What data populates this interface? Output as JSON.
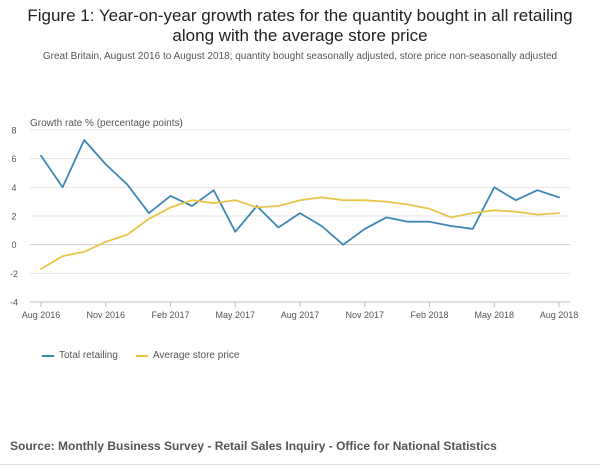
{
  "title_line1": "Figure 1: Year-on-year growth rates for the quantity bought in all retailing",
  "title_line2": "along with the average store price",
  "subtitle": "Great Britain, August 2016 to August 2018; quantity bought seasonally adjusted, store price non-seasonally adjusted",
  "source": "Source: Monthly Business Survey - Retail Sales Inquiry - Office for National Statistics",
  "chart_data": {
    "type": "line",
    "title": "Figure 1: Year-on-year growth rates for the quantity bought in all retailing along with the average store price",
    "ylabel": "Growth rate % (percentage points)",
    "xlabel": "",
    "ylim": [
      -4,
      8
    ],
    "yticks": [
      "-4",
      "-2",
      "0",
      "2",
      "4",
      "6",
      "8"
    ],
    "x": [
      "Aug 2016",
      "Sep 2016",
      "Oct 2016",
      "Nov 2016",
      "Dec 2016",
      "Jan 2017",
      "Feb 2017",
      "Mar 2017",
      "Apr 2017",
      "May 2017",
      "Jun 2017",
      "Jul 2017",
      "Aug 2017",
      "Sep 2017",
      "Oct 2017",
      "Nov 2017",
      "Dec 2017",
      "Jan 2018",
      "Feb 2018",
      "Mar 2018",
      "Apr 2018",
      "May 2018",
      "Jun 2018",
      "Jul 2018",
      "Aug 2018"
    ],
    "xtick_labels": [
      "Aug 2016",
      "Nov 2016",
      "Feb 2017",
      "May 2017",
      "Aug 2017",
      "Nov 2017",
      "Feb 2018",
      "May 2018",
      "Aug 2018"
    ],
    "grid": "horizontal",
    "legend_position": "bottom-left",
    "series": [
      {
        "name": "Total retailing",
        "color": "#3d87b5",
        "values": [
          6.2,
          4.0,
          7.3,
          5.6,
          4.2,
          2.2,
          3.4,
          2.7,
          3.8,
          0.9,
          2.7,
          1.2,
          2.2,
          1.3,
          0.0,
          1.1,
          1.9,
          1.6,
          1.6,
          1.3,
          1.1,
          4.0,
          3.1,
          3.8,
          3.3
        ]
      },
      {
        "name": "Average store price",
        "color": "#e8c54a",
        "values": [
          -1.7,
          -0.8,
          -0.5,
          0.2,
          0.7,
          1.8,
          2.6,
          3.1,
          2.9,
          3.1,
          2.6,
          2.7,
          3.1,
          3.3,
          3.1,
          3.1,
          3.0,
          2.8,
          2.5,
          1.9,
          2.2,
          2.4,
          2.3,
          2.1,
          2.2
        ]
      }
    ]
  }
}
